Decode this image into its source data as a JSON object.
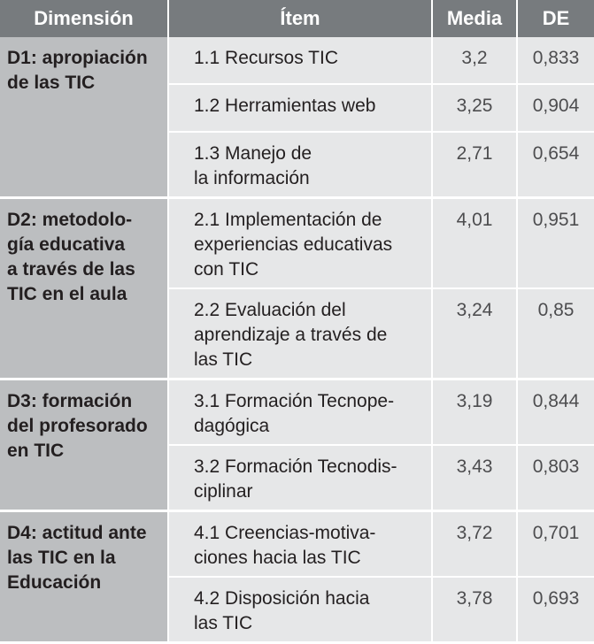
{
  "headers": {
    "dimension": "Dimensión",
    "item": "Ítem",
    "mean": "Media",
    "sd": "DE"
  },
  "groups": [
    {
      "dimension": "D1: apropiación\nde las TIC",
      "rows": [
        {
          "item": "1.1 Recursos TIC",
          "mean": "3,2",
          "sd": "0,833"
        },
        {
          "item": "1.2 Herramientas web",
          "mean": "3,25",
          "sd": "0,904"
        },
        {
          "item": "1.3 Manejo de\nla información",
          "mean": "2,71",
          "sd": "0,654"
        }
      ]
    },
    {
      "dimension": "D2: metodolo-\ngía educativa\na través de las\nTIC en el aula",
      "rows": [
        {
          "item": "2.1 Implementación de\nexperiencias educativas\ncon TIC",
          "mean": "4,01",
          "sd": "0,951"
        },
        {
          "item": "2.2 Evaluación del\naprendizaje a través de\nlas TIC",
          "mean": "3,24",
          "sd": "0,85"
        }
      ]
    },
    {
      "dimension": "D3: formación\ndel profesorado\nen TIC",
      "rows": [
        {
          "item": "3.1 Formación Tecnope-\ndagógica",
          "mean": "3,19",
          "sd": "0,844"
        },
        {
          "item": "3.2 Formación Tecnodis-\nciplinar",
          "mean": "3,43",
          "sd": "0,803"
        }
      ]
    },
    {
      "dimension": "D4: actitud ante\nlas TIC en la\nEducación",
      "rows": [
        {
          "item": "4.1 Creencias-motiva-\nciones hacia las TIC",
          "mean": "3,72",
          "sd": "0,701"
        },
        {
          "item": "4.2 Disposición hacia\nlas TIC",
          "mean": "3,78",
          "sd": "0,693"
        }
      ]
    }
  ]
}
